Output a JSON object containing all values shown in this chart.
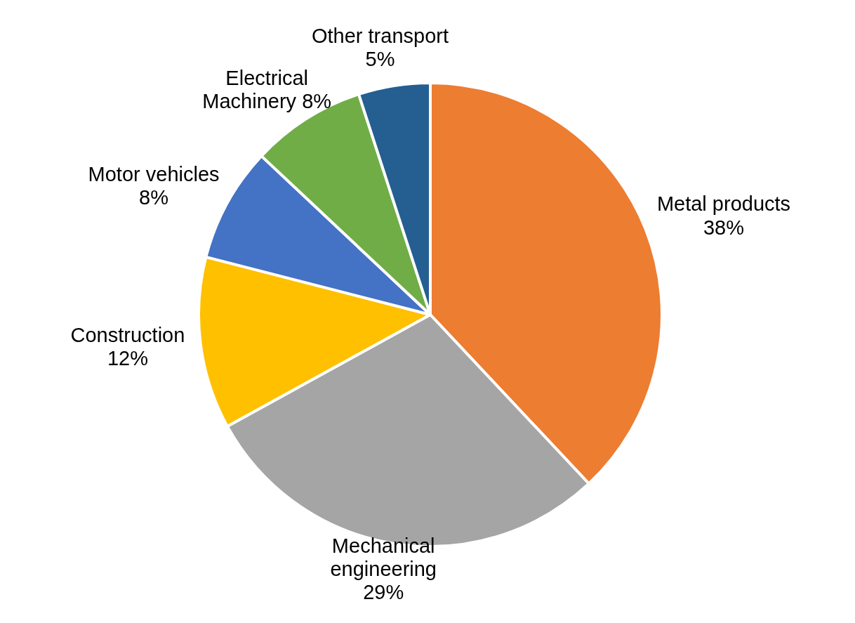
{
  "chart_data": {
    "type": "pie",
    "categories": [
      "Metal products",
      "Mechanical engineering",
      "Construction",
      "Motor vehicles",
      "Electrical Machinery",
      "Other transport"
    ],
    "values": [
      38,
      29,
      12,
      8,
      8,
      5
    ],
    "value_labels": [
      "38%",
      "29%",
      "12%",
      "8%",
      "8%",
      "5%"
    ],
    "colors": [
      "#ed7d31",
      "#a5a5a5",
      "#ffc000",
      "#4472c4",
      "#70ad47",
      "#255e91"
    ]
  }
}
